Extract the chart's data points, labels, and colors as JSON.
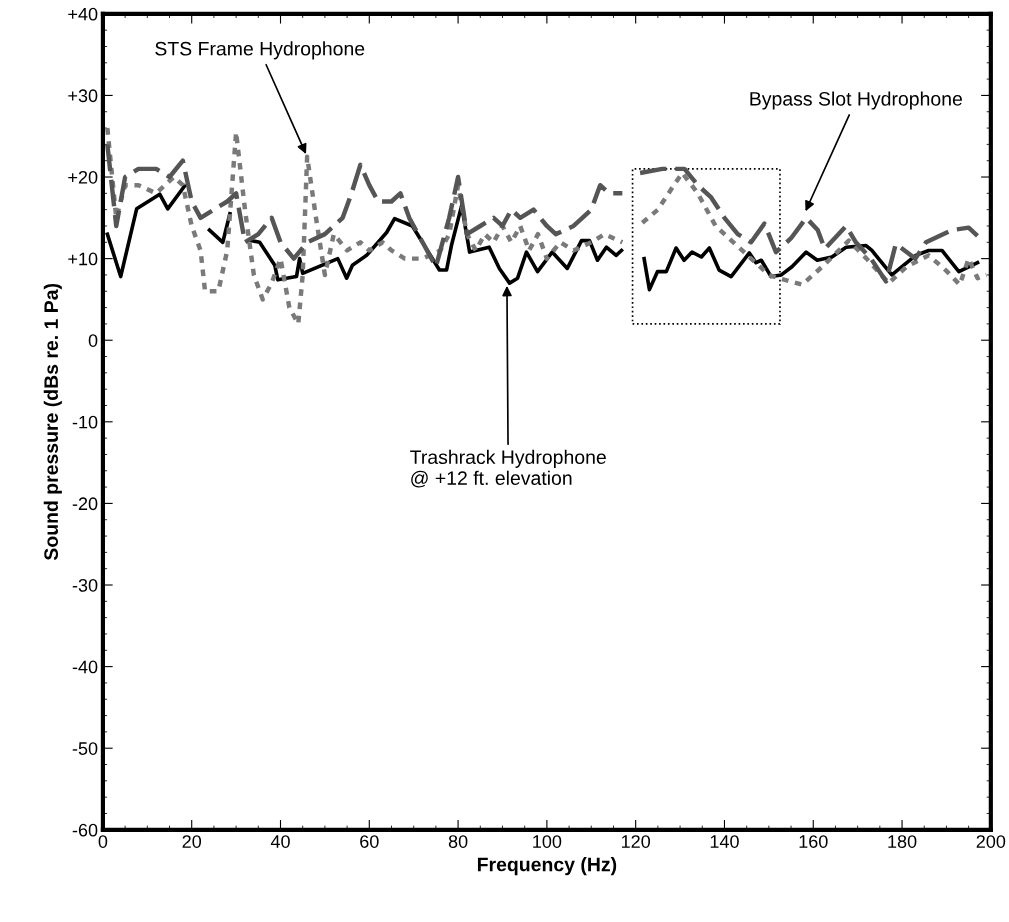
{
  "chart_data": {
    "type": "line",
    "xlabel": "Frequency (Hz)",
    "ylabel": "Sound pressure (dBs re. 1 Pa)",
    "xlim": [
      0,
      200
    ],
    "ylim": [
      -60,
      40
    ],
    "xticks": [
      0,
      20,
      40,
      60,
      80,
      100,
      120,
      140,
      160,
      180,
      200
    ],
    "yticks": [
      {
        "value": -60,
        "label": "-60"
      },
      {
        "value": -50,
        "label": "-50"
      },
      {
        "value": -40,
        "label": "-40"
      },
      {
        "value": -30,
        "label": "-30"
      },
      {
        "value": -20,
        "label": "-20"
      },
      {
        "value": -10,
        "label": "-10"
      },
      {
        "value": 0,
        "label": "0"
      },
      {
        "value": 10,
        "label": "+10"
      },
      {
        "value": 20,
        "label": "+20"
      },
      {
        "value": 30,
        "label": "+30"
      },
      {
        "value": 40,
        "label": "+40"
      }
    ],
    "grid": false,
    "marker": "none",
    "series": [
      {
        "color": "#000000",
        "line_style": "solid",
        "x": [
          1,
          4,
          7.6,
          12.8,
          14.6,
          18.4,
          null,
          24,
          27,
          28.6,
          null,
          33.5,
          35.3,
          38.7,
          39.4,
          43.6,
          44.3,
          45,
          52.9,
          54.9,
          56.2,
          59.4,
          63.9,
          65.7,
          69.7,
          75.8,
          77.4,
          78.5,
          80.8,
          82.6,
          87,
          89.3,
          91.6,
          93.4,
          95.4,
          97.9,
          101.2,
          104.6,
          107.8,
          109.6,
          111.4,
          113.4,
          115.6,
          116.8,
          null,
          121.9,
          123.1,
          124.9,
          126.9,
          129.1,
          130.9,
          132.7,
          134.8,
          136.6,
          138.8,
          141.5,
          145.6,
          147.1,
          148.3,
          150.5,
          152.8,
          155.2,
          158.4,
          160.9,
          164.2,
          167.4,
          171.9,
          173.2,
          177.7,
          183.1,
          186,
          189,
          192.8,
          197
        ],
        "values": [
          13,
          7.8,
          16.1,
          17.9,
          16.1,
          18.9,
          null,
          13.5,
          12,
          15.5,
          null,
          12.2,
          12,
          9.2,
          7.4,
          7.8,
          10,
          8.2,
          10,
          7.6,
          9.2,
          10.4,
          13.2,
          14.9,
          14,
          8.6,
          8.6,
          11.6,
          16.5,
          10.8,
          11.4,
          8.8,
          7,
          7.6,
          10.8,
          8.4,
          10.8,
          8.8,
          12.2,
          12.2,
          9.8,
          11.4,
          10.4,
          11,
          null,
          10,
          6.2,
          8.4,
          8.4,
          11.3,
          9.8,
          10.8,
          10.2,
          11.3,
          8.6,
          7.8,
          10.7,
          9.5,
          9.8,
          7.8,
          8,
          9,
          10.8,
          9.8,
          10.2,
          11.4,
          11.6,
          11,
          8,
          10.4,
          11,
          11,
          8.4,
          9.5
        ]
      },
      {
        "color": "#7a7a7a",
        "line_style": "dotted",
        "x": [
          1,
          3,
          5,
          8,
          12,
          16,
          18,
          20,
          22,
          23,
          26,
          28,
          30,
          32,
          34,
          36,
          38,
          40,
          42,
          44,
          45,
          46,
          48,
          50,
          52,
          55,
          58,
          60,
          63,
          65,
          68,
          72,
          76,
          78,
          80,
          82,
          84,
          86,
          88,
          90,
          92,
          94,
          96,
          98,
          100,
          103,
          106,
          110,
          113,
          117,
          null,
          121.5,
          125,
          128,
          130.5,
          134,
          138,
          142,
          146,
          150,
          153,
          157.5,
          162,
          168,
          172,
          177,
          181,
          186,
          190,
          193,
          195,
          197,
          199
        ],
        "values": [
          26,
          15,
          19,
          19,
          18,
          20,
          19,
          14,
          11,
          6,
          6,
          11,
          25.5,
          16,
          8,
          5,
          7,
          10,
          4,
          2,
          8,
          22.5,
          15,
          8,
          13,
          11,
          12,
          11,
          12,
          11,
          10,
          10,
          11,
          13,
          19,
          13,
          11,
          13,
          12,
          14,
          12,
          14,
          11,
          13,
          10,
          12,
          11,
          12,
          13,
          12,
          null,
          14.4,
          16,
          18.5,
          20.5,
          18,
          14,
          12,
          10,
          8,
          7.5,
          6.8,
          9,
          12.2,
          10,
          7,
          9,
          10.4,
          8.5,
          6.8,
          10,
          7.6,
          8
        ]
      },
      {
        "color": "#555555",
        "line_style": "dashed",
        "x": [
          1,
          3,
          5,
          8,
          12,
          15,
          18,
          20,
          22,
          25,
          28,
          30,
          32,
          35,
          38,
          40,
          43,
          46,
          50,
          54,
          56,
          58,
          60,
          62,
          65,
          67,
          69,
          72,
          75,
          78,
          80,
          82,
          85,
          88,
          90,
          92,
          94,
          97,
          100,
          102,
          106,
          108,
          110,
          112,
          114,
          117,
          null,
          121,
          126,
          131,
          134,
          137,
          140,
          143,
          146,
          149,
          151.6,
          155,
          158.4,
          161,
          162.6,
          167.4,
          169.6,
          173,
          176.4,
          178.6,
          183,
          185.4,
          191.2,
          195,
          197
        ],
        "values": [
          24,
          14,
          20,
          21,
          21,
          20,
          22,
          17,
          15,
          16,
          17,
          18,
          12,
          13,
          15,
          12,
          10,
          12,
          13,
          15,
          18,
          21.5,
          19,
          17,
          17,
          18,
          15,
          12,
          9,
          15,
          20,
          13,
          14,
          15,
          14,
          16,
          15,
          16,
          14,
          13,
          14,
          15,
          16,
          19,
          18,
          18,
          null,
          20.5,
          21,
          21,
          19,
          17.5,
          15,
          13,
          12,
          14.3,
          10.8,
          12.5,
          15,
          13.5,
          11.2,
          14,
          12,
          10,
          7.2,
          11.8,
          10,
          12,
          13.5,
          13.8,
          12.8
        ]
      }
    ],
    "annotations": [
      {
        "text": "STS Frame Hydrophone",
        "x": 46,
        "y": 22.5
      },
      {
        "text": "Bypass Slot Hydrophone",
        "x": 158,
        "y": 15.5
      },
      {
        "text": "Trashrack Hydrophone\n@ +12 ft. elevation",
        "x": 91,
        "y": 7
      }
    ]
  }
}
